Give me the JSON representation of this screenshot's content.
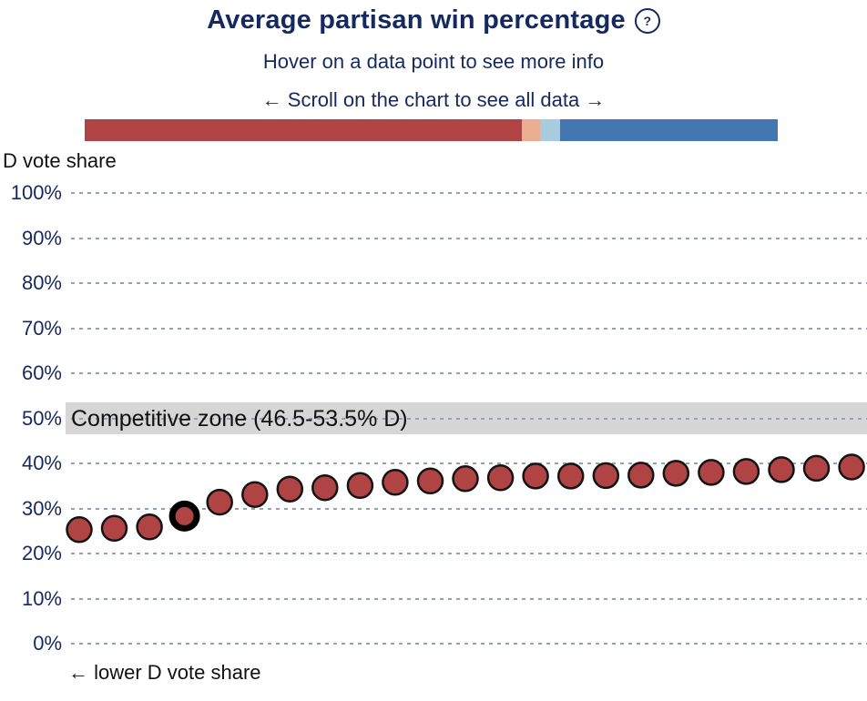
{
  "header": {
    "title": "Average partisan win percentage",
    "help_icon": "?",
    "subtitle": "Hover on a data point to see more info",
    "scroll_hint": "← Scroll on the chart to see all data →"
  },
  "partisan_bar": {
    "segments": [
      {
        "name": "strong-republican",
        "color": "#b04343",
        "width_pct": 63.1
      },
      {
        "name": "lean-republican",
        "color": "#eaad91",
        "width_pct": 2.6
      },
      {
        "name": "lean-democrat",
        "color": "#a9cbdf",
        "width_pct": 2.9
      },
      {
        "name": "strong-democrat",
        "color": "#4477b0",
        "width_pct": 31.4
      }
    ]
  },
  "chart_data": {
    "type": "scatter",
    "ylabel": "D vote share",
    "ylim": [
      0,
      100
    ],
    "y_ticks": [
      100,
      90,
      80,
      70,
      60,
      50,
      40,
      30,
      20,
      10,
      0
    ],
    "y_tick_suffix": "%",
    "grid": "horizontal dashed",
    "competitive_zone": {
      "label": "Competitive zone (46.5-53.5% D)",
      "from": 46.5,
      "to": 53.5,
      "color": "#d6d6d6"
    },
    "x_axis_note": "← lower D vote share",
    "point_color": "#b04343",
    "point_stroke": "#141414",
    "highlighted_index": 3,
    "values": [
      25.3,
      25.6,
      25.9,
      28.3,
      31.4,
      33.1,
      34.3,
      34.6,
      35.1,
      35.8,
      36.1,
      36.6,
      36.8,
      37.2,
      37.2,
      37.3,
      37.4,
      37.8,
      38.0,
      38.2,
      38.6,
      38.9,
      39.2
    ]
  }
}
